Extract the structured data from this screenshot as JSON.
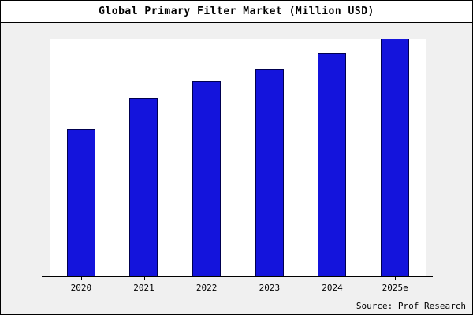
{
  "title": "Global Primary Filter Market (Million USD)",
  "source": "Source: Prof Research",
  "chart_data": {
    "type": "bar",
    "categories": [
      "2020",
      "2021",
      "2022",
      "2023",
      "2024",
      "2025e"
    ],
    "values": [
      62,
      75,
      82,
      87,
      94,
      100
    ],
    "title": "Global Primary Filter Market (Million USD)",
    "xlabel": "",
    "ylabel": "",
    "ylim": [
      0,
      100
    ],
    "grid": false,
    "legend_position": "none",
    "bar_fill_color": "#1414dc",
    "bar_border_color": "#00004f",
    "plot_background": "#ffffff",
    "page_background": "#f0f0f0"
  }
}
